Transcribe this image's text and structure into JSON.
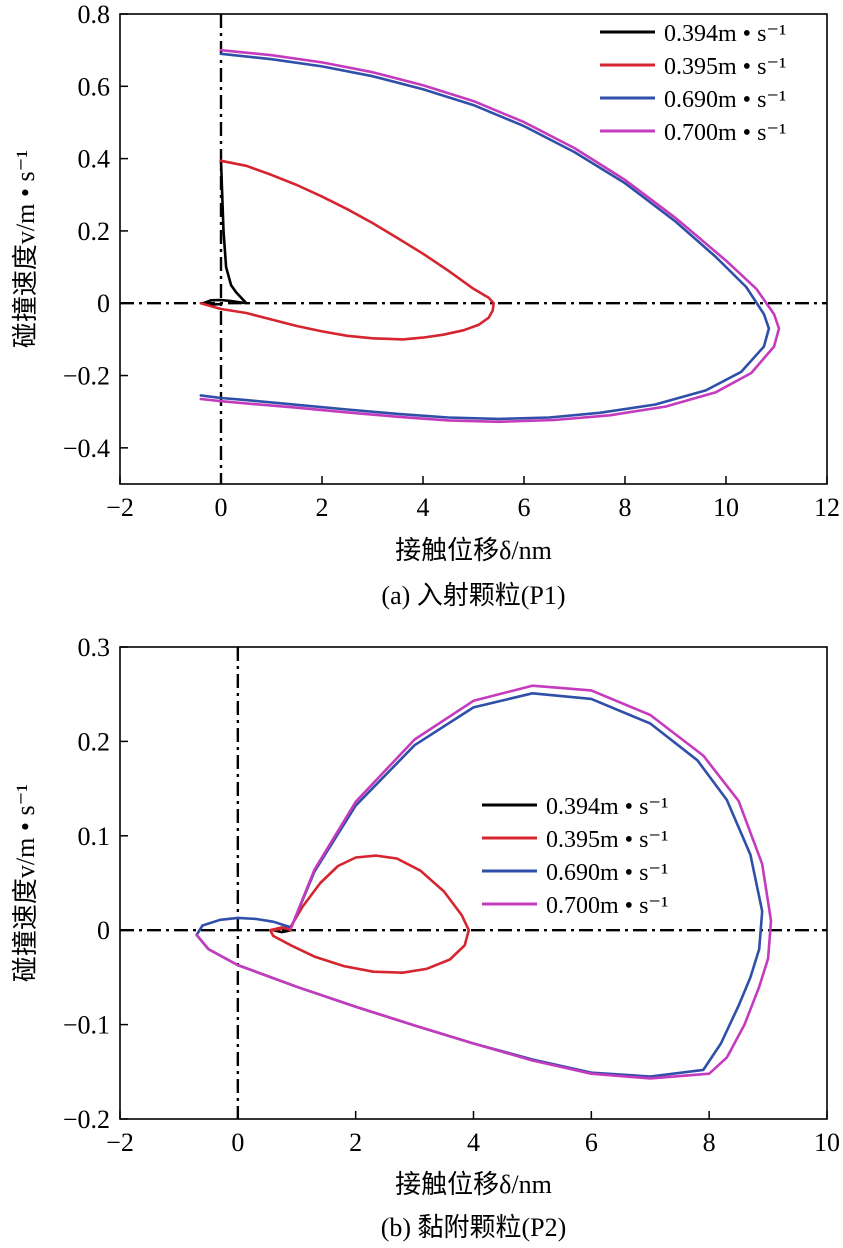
{
  "chart_data": [
    {
      "type": "line",
      "caption": "(a) 入射颗粒(P1)",
      "xlabel": "接触位移δ/nm",
      "ylabel": "碰撞速度v/m • s⁻¹",
      "xlim": [
        -2,
        12
      ],
      "ylim": [
        -0.5,
        0.8
      ],
      "xticks": [
        "−2",
        "0",
        "2",
        "4",
        "6",
        "8",
        "10",
        "12"
      ],
      "yticks": [
        "−0.4",
        "−0.2",
        "0",
        "0.2",
        "0.4",
        "0.6",
        "0.8"
      ],
      "legend_position": "top-right",
      "grid": false,
      "series": [
        {
          "name": "0.394m • s⁻¹",
          "color": "#000000",
          "x": [
            0,
            0.05,
            0.1,
            0.2,
            0.3,
            0.4,
            0.5,
            0.4,
            0.2,
            0,
            -0.2,
            -0.35,
            -0.2,
            0
          ],
          "y": [
            0.394,
            0.2,
            0.1,
            0.05,
            0.03,
            0.015,
            0,
            0.002,
            0.006,
            0.009,
            0.008,
            0,
            -0.004,
            -0.002
          ]
        },
        {
          "name": "0.395m • s⁻¹",
          "color": "#d6252e",
          "x": [
            0,
            0.5,
            1,
            1.5,
            2,
            2.5,
            3,
            3.5,
            4,
            4.5,
            5,
            5.3,
            5.4,
            5.38,
            5.3,
            5.1,
            4.8,
            4.4,
            4,
            3.6,
            3,
            2.5,
            2,
            1.5,
            1,
            0.5,
            0,
            -0.2,
            -0.4
          ],
          "y": [
            0.394,
            0.38,
            0.355,
            0.327,
            0.295,
            0.26,
            0.222,
            0.18,
            0.137,
            0.09,
            0.04,
            0.015,
            0,
            -0.02,
            -0.04,
            -0.06,
            -0.075,
            -0.087,
            -0.095,
            -0.1,
            -0.097,
            -0.09,
            -0.078,
            -0.063,
            -0.045,
            -0.027,
            -0.016,
            -0.008,
            0
          ]
        },
        {
          "name": "0.690m • s⁻¹",
          "color": "#2f4fa8",
          "x": [
            0,
            1,
            2,
            3,
            4,
            5,
            6,
            7,
            8,
            9,
            9.8,
            10.4,
            10.75,
            10.85,
            10.75,
            10.3,
            9.6,
            8.6,
            7.5,
            6.5,
            5.5,
            4.5,
            3.5,
            2.5,
            1.5,
            0.5,
            0,
            -0.4
          ],
          "y": [
            0.69,
            0.675,
            0.655,
            0.628,
            0.592,
            0.548,
            0.49,
            0.418,
            0.332,
            0.226,
            0.128,
            0.045,
            -0.03,
            -0.07,
            -0.12,
            -0.19,
            -0.241,
            -0.28,
            -0.303,
            -0.316,
            -0.32,
            -0.316,
            -0.306,
            -0.294,
            -0.281,
            -0.268,
            -0.262,
            -0.255
          ]
        },
        {
          "name": "0.700m • s⁻¹",
          "color": "#c53bbd",
          "x": [
            0,
            1,
            2,
            3,
            4,
            5,
            6,
            7,
            8,
            9,
            10,
            10.6,
            10.95,
            11.05,
            10.95,
            10.5,
            9.8,
            8.8,
            7.7,
            6.6,
            5.5,
            4.5,
            3.5,
            2.5,
            1.5,
            0.5,
            0,
            -0.4
          ],
          "y": [
            0.7,
            0.686,
            0.666,
            0.639,
            0.603,
            0.559,
            0.501,
            0.429,
            0.341,
            0.236,
            0.118,
            0.04,
            -0.03,
            -0.07,
            -0.12,
            -0.193,
            -0.246,
            -0.286,
            -0.31,
            -0.323,
            -0.328,
            -0.324,
            -0.314,
            -0.302,
            -0.289,
            -0.277,
            -0.271,
            -0.265
          ]
        }
      ]
    },
    {
      "type": "line",
      "caption": "(b) 黏附颗粒(P2)",
      "xlabel": "接触位移δ/nm",
      "ylabel": "碰撞速度v/m • s⁻¹",
      "xlim": [
        -2,
        10
      ],
      "ylim": [
        -0.2,
        0.3
      ],
      "xticks": [
        "−2",
        "0",
        "2",
        "4",
        "6",
        "8",
        "10"
      ],
      "yticks": [
        "−0.2",
        "−0.1",
        "0",
        "0.1",
        "0.2",
        "0.3"
      ],
      "legend_position": "center-right",
      "grid": false,
      "series": [
        {
          "name": "0.394m • s⁻¹",
          "color": "#000000",
          "x": [
            0.6,
            0.75,
            0.9,
            0.75,
            0.6
          ],
          "y": [
            0,
            0.002,
            0,
            -0.002,
            0
          ]
        },
        {
          "name": "0.395m • s⁻¹",
          "color": "#d6252e",
          "x": [
            0.6,
            0.9,
            1.1,
            1.4,
            1.7,
            2,
            2.35,
            2.7,
            3.1,
            3.5,
            3.8,
            3.92,
            3.85,
            3.6,
            3.2,
            2.8,
            2.3,
            1.8,
            1.3,
            0.9,
            0.6,
            0.55,
            0.75,
            0.9
          ],
          "y": [
            0,
            0.004,
            0.025,
            0.05,
            0.068,
            0.077,
            0.079,
            0.076,
            0.063,
            0.041,
            0.016,
            0,
            -0.016,
            -0.031,
            -0.041,
            -0.045,
            -0.044,
            -0.038,
            -0.028,
            -0.016,
            -0.006,
            0,
            0.003,
            0
          ]
        },
        {
          "name": "0.690m • s⁻¹",
          "color": "#2f4fa8",
          "x": [
            0.9,
            1.3,
            2,
            3,
            4,
            5,
            6,
            7,
            7.8,
            8.3,
            8.7,
            8.9,
            8.85,
            8.7,
            8.5,
            8.2,
            7.9,
            7,
            6,
            5,
            4,
            3,
            2,
            1,
            0,
            -0.5,
            -0.7,
            -0.6,
            -0.3,
            0,
            0.3,
            0.6,
            0.9
          ],
          "y": [
            0.002,
            0.062,
            0.132,
            0.196,
            0.236,
            0.251,
            0.245,
            0.219,
            0.18,
            0.138,
            0.08,
            0.02,
            -0.02,
            -0.05,
            -0.08,
            -0.12,
            -0.148,
            -0.155,
            -0.151,
            -0.137,
            -0.12,
            -0.101,
            -0.081,
            -0.06,
            -0.037,
            -0.02,
            -0.005,
            0.005,
            0.011,
            0.013,
            0.012,
            0.009,
            0.003
          ]
        },
        {
          "name": "0.700m • s⁻¹",
          "color": "#c53bbd",
          "x": [
            0.9,
            1.3,
            2,
            3,
            4,
            5,
            6,
            7,
            7.9,
            8.5,
            8.9,
            9.05,
            9,
            8.85,
            8.6,
            8.3,
            8,
            7,
            6,
            5,
            4,
            3,
            2,
            1,
            0,
            -0.5,
            -0.7
          ],
          "y": [
            0.002,
            0.064,
            0.136,
            0.202,
            0.243,
            0.259,
            0.254,
            0.228,
            0.185,
            0.137,
            0.07,
            0.01,
            -0.03,
            -0.06,
            -0.1,
            -0.135,
            -0.152,
            -0.157,
            -0.152,
            -0.138,
            -0.12,
            -0.101,
            -0.081,
            -0.06,
            -0.037,
            -0.02,
            -0.005
          ]
        }
      ]
    }
  ]
}
